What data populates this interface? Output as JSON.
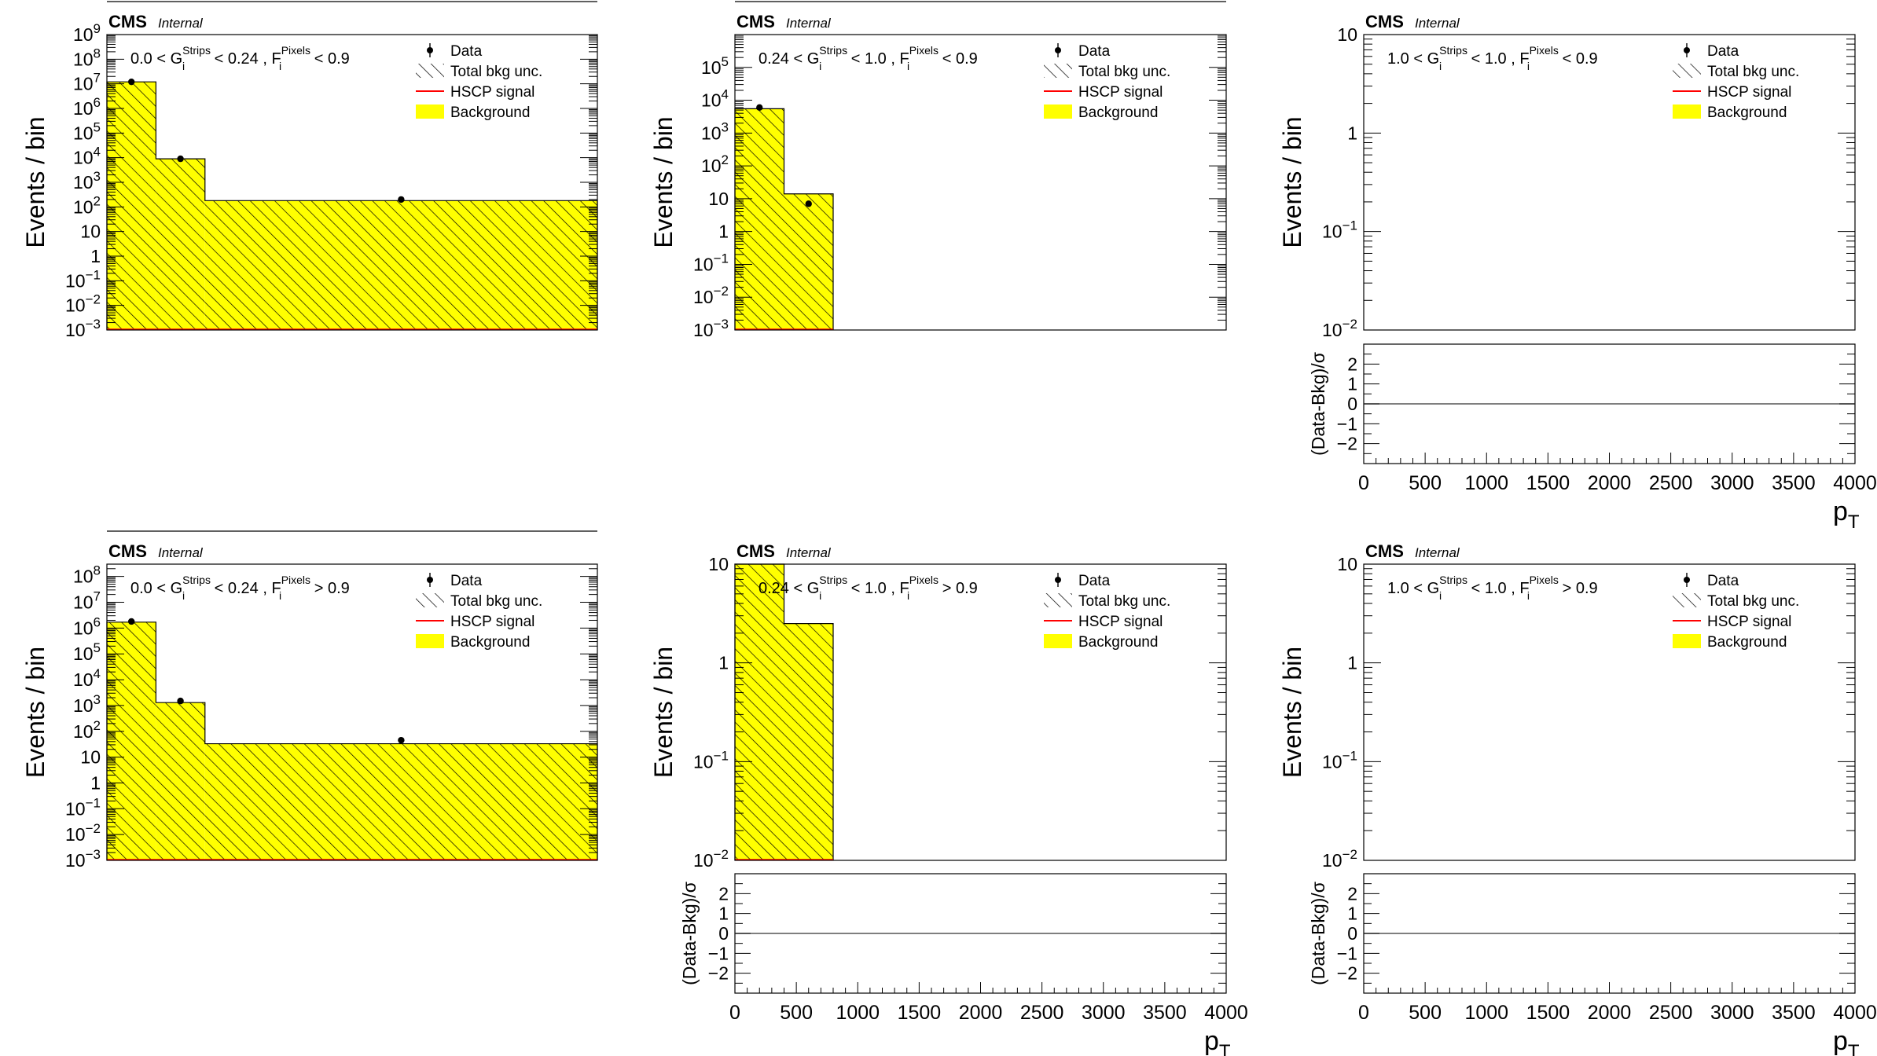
{
  "colors": {
    "background_fill": "#ffff00",
    "signal_line": "#ff0000",
    "data_marker": "#000000",
    "frame": "#000000"
  },
  "common": {
    "experiment": "CMS",
    "status": "Internal",
    "y_label": "Events / bin",
    "x_label": "p",
    "x_label_sub": "T",
    "pull_label": "(Data-Bkg)/σ",
    "legend": [
      {
        "key": "data",
        "label": "Data"
      },
      {
        "key": "unc",
        "label": "Total bkg unc."
      },
      {
        "key": "signal",
        "label": "HSCP signal"
      },
      {
        "key": "bkg",
        "label": "Background"
      }
    ],
    "cut": {
      "g": "G",
      "f": "F",
      "sub": "i",
      "g_sup": "Strips",
      "f_sup": "Pixels"
    }
  },
  "chart_data": [
    {
      "id": "p1",
      "type": "bar",
      "log_y": true,
      "ylim": [
        0.001,
        1000000000
      ],
      "xlim": [
        0,
        4000
      ],
      "show_pull": false,
      "cut_text": {
        "g_lo": "0.0 <",
        "g_hi": "< 0.24 ,",
        "f_rel": "< 0.9"
      },
      "y_ticks": [
        {
          "v": 1000000000,
          "b": "10",
          "e": "9"
        },
        {
          "v": 100000000,
          "b": "10",
          "e": "8"
        },
        {
          "v": 10000000,
          "b": "10",
          "e": "7"
        },
        {
          "v": 1000000,
          "b": "10",
          "e": "6"
        },
        {
          "v": 100000,
          "b": "10",
          "e": "5"
        },
        {
          "v": 10000,
          "b": "10",
          "e": "4"
        },
        {
          "v": 1000,
          "b": "10",
          "e": "3"
        },
        {
          "v": 100,
          "b": "10",
          "e": "2"
        },
        {
          "v": 10,
          "b": "10",
          "e": ""
        },
        {
          "v": 1,
          "b": "1",
          "e": ""
        },
        {
          "v": 0.1,
          "b": "10",
          "e": "−1"
        },
        {
          "v": 0.01,
          "b": "10",
          "e": "−2"
        },
        {
          "v": 0.001,
          "b": "10",
          "e": "−3"
        }
      ],
      "background": [
        {
          "x0": 0,
          "x1": 400,
          "y": 12000000
        },
        {
          "x0": 400,
          "x1": 800,
          "y": 9000
        },
        {
          "x0": 800,
          "x1": 4000,
          "y": 180
        }
      ],
      "data": [
        {
          "x": 200,
          "y": 12000000
        },
        {
          "x": 600,
          "y": 9000
        },
        {
          "x": 2400,
          "y": 200
        }
      ]
    },
    {
      "id": "p2",
      "type": "bar",
      "log_y": true,
      "ylim": [
        0.001,
        1000000
      ],
      "xlim": [
        0,
        4000
      ],
      "show_pull": false,
      "cut_text": {
        "g_lo": "0.24 <",
        "g_hi": "< 1.0 ,",
        "f_rel": "< 0.9"
      },
      "y_ticks": [
        {
          "v": 100000,
          "b": "10",
          "e": "5"
        },
        {
          "v": 10000,
          "b": "10",
          "e": "4"
        },
        {
          "v": 1000,
          "b": "10",
          "e": "3"
        },
        {
          "v": 100,
          "b": "10",
          "e": "2"
        },
        {
          "v": 10,
          "b": "10",
          "e": ""
        },
        {
          "v": 1,
          "b": "1",
          "e": ""
        },
        {
          "v": 0.1,
          "b": "10",
          "e": "−1"
        },
        {
          "v": 0.01,
          "b": "10",
          "e": "−2"
        },
        {
          "v": 0.001,
          "b": "10",
          "e": "−3"
        }
      ],
      "background": [
        {
          "x0": 0,
          "x1": 400,
          "y": 5500
        },
        {
          "x0": 400,
          "x1": 800,
          "y": 14
        }
      ],
      "data": [
        {
          "x": 200,
          "y": 6000
        },
        {
          "x": 600,
          "y": 7
        }
      ]
    },
    {
      "id": "p3",
      "type": "bar",
      "log_y": true,
      "ylim": [
        0.01,
        10
      ],
      "xlim": [
        0,
        4000
      ],
      "show_pull": true,
      "cut_text": {
        "g_lo": "1.0 <",
        "g_hi": "< 1.0 ,",
        "f_rel": "< 0.9"
      },
      "y_ticks": [
        {
          "v": 10,
          "b": "10",
          "e": ""
        },
        {
          "v": 1,
          "b": "1",
          "e": ""
        },
        {
          "v": 0.1,
          "b": "10",
          "e": "−1"
        },
        {
          "v": 0.01,
          "b": "10",
          "e": "−2"
        }
      ],
      "x_ticks": [
        0,
        500,
        1000,
        1500,
        2000,
        2500,
        3000,
        3500,
        4000
      ],
      "pull_ticks": [
        2,
        1,
        0,
        -1,
        -2
      ],
      "pull_tick_labels": [
        "2",
        "1",
        "0",
        "−1",
        "−2"
      ],
      "background": [],
      "data": []
    },
    {
      "id": "p4",
      "type": "bar",
      "log_y": true,
      "ylim": [
        0.001,
        300000000
      ],
      "xlim": [
        0,
        4000
      ],
      "show_pull": false,
      "cut_text": {
        "g_lo": "0.0 <",
        "g_hi": "< 0.24 ,",
        "f_rel": "> 0.9"
      },
      "y_ticks": [
        {
          "v": 100000000,
          "b": "10",
          "e": "8"
        },
        {
          "v": 10000000,
          "b": "10",
          "e": "7"
        },
        {
          "v": 1000000,
          "b": "10",
          "e": "6"
        },
        {
          "v": 100000,
          "b": "10",
          "e": "5"
        },
        {
          "v": 10000,
          "b": "10",
          "e": "4"
        },
        {
          "v": 1000,
          "b": "10",
          "e": "3"
        },
        {
          "v": 100,
          "b": "10",
          "e": "2"
        },
        {
          "v": 10,
          "b": "10",
          "e": ""
        },
        {
          "v": 1,
          "b": "1",
          "e": ""
        },
        {
          "v": 0.1,
          "b": "10",
          "e": "−1"
        },
        {
          "v": 0.01,
          "b": "10",
          "e": "−2"
        },
        {
          "v": 0.001,
          "b": "10",
          "e": "−3"
        }
      ],
      "background": [
        {
          "x0": 0,
          "x1": 400,
          "y": 1700000
        },
        {
          "x0": 400,
          "x1": 800,
          "y": 1300
        },
        {
          "x0": 800,
          "x1": 4000,
          "y": 33
        }
      ],
      "data": [
        {
          "x": 200,
          "y": 1800000
        },
        {
          "x": 600,
          "y": 1500
        },
        {
          "x": 2400,
          "y": 45
        }
      ]
    },
    {
      "id": "p5",
      "type": "bar",
      "log_y": true,
      "ylim": [
        0.01,
        10
      ],
      "xlim": [
        0,
        4000
      ],
      "show_pull": true,
      "cut_text": {
        "g_lo": "0.24 <",
        "g_hi": "< 1.0 ,",
        "f_rel": "> 0.9"
      },
      "y_ticks": [
        {
          "v": 10,
          "b": "10",
          "e": ""
        },
        {
          "v": 1,
          "b": "1",
          "e": ""
        },
        {
          "v": 0.1,
          "b": "10",
          "e": "−1"
        },
        {
          "v": 0.01,
          "b": "10",
          "e": "−2"
        }
      ],
      "x_ticks": [
        0,
        500,
        1000,
        1500,
        2000,
        2500,
        3000,
        3500,
        4000
      ],
      "pull_ticks": [
        2,
        1,
        0,
        -1,
        -2
      ],
      "pull_tick_labels": [
        "2",
        "1",
        "0",
        "−1",
        "−2"
      ],
      "background": [
        {
          "x0": 0,
          "x1": 400,
          "y": 10
        },
        {
          "x0": 400,
          "x1": 800,
          "y": 2.5
        }
      ],
      "data": []
    },
    {
      "id": "p6",
      "type": "bar",
      "log_y": true,
      "ylim": [
        0.01,
        10
      ],
      "xlim": [
        0,
        4000
      ],
      "show_pull": true,
      "cut_text": {
        "g_lo": "1.0 <",
        "g_hi": "< 1.0 ,",
        "f_rel": "> 0.9"
      },
      "y_ticks": [
        {
          "v": 10,
          "b": "10",
          "e": ""
        },
        {
          "v": 1,
          "b": "1",
          "e": ""
        },
        {
          "v": 0.1,
          "b": "10",
          "e": "−1"
        },
        {
          "v": 0.01,
          "b": "10",
          "e": "−2"
        }
      ],
      "x_ticks": [
        0,
        500,
        1000,
        1500,
        2000,
        2500,
        3000,
        3500,
        4000
      ],
      "pull_ticks": [
        2,
        1,
        0,
        -1,
        -2
      ],
      "pull_tick_labels": [
        "2",
        "1",
        "0",
        "−1",
        "−2"
      ],
      "background": [],
      "data": []
    }
  ]
}
